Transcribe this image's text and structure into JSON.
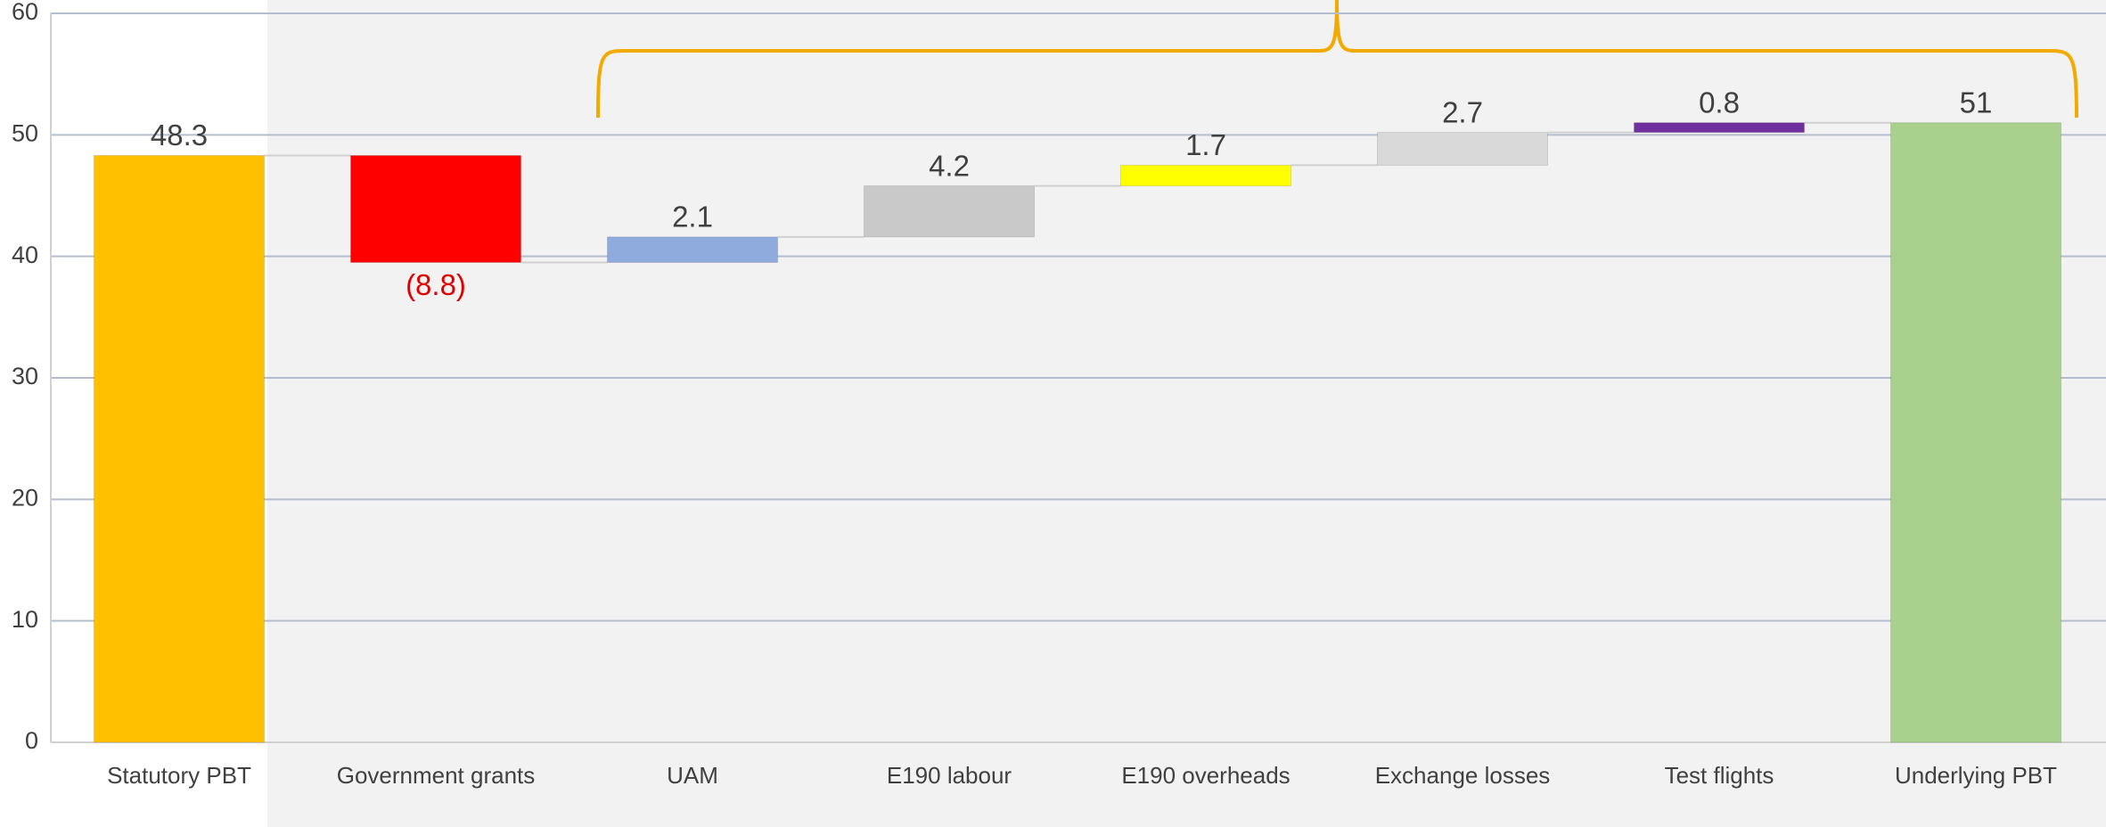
{
  "chart_data": {
    "type": "waterfall",
    "categories": [
      "Statutory PBT",
      "Government grants",
      "UAM",
      "E190 labour",
      "E190 overheads",
      "Exchange losses",
      "Test flights",
      "Underlying PBT"
    ],
    "values": [
      48.3,
      -8.8,
      2.1,
      4.2,
      1.7,
      2.7,
      0.8,
      51
    ],
    "value_labels": [
      "48.3",
      "(8.8)",
      "2.1",
      "4.2",
      "1.7",
      "2.7",
      "0.8",
      "51"
    ],
    "colors": [
      "#FFC000",
      "#FF0000",
      "#8FAADC",
      "#C9C9C9",
      "#FFFF00",
      "#D9D9D9",
      "#7030A0",
      "#A9D18E"
    ],
    "ylim": [
      0,
      60
    ],
    "yticks": [
      0,
      10,
      20,
      30,
      40,
      50,
      60
    ],
    "grid": true
  }
}
